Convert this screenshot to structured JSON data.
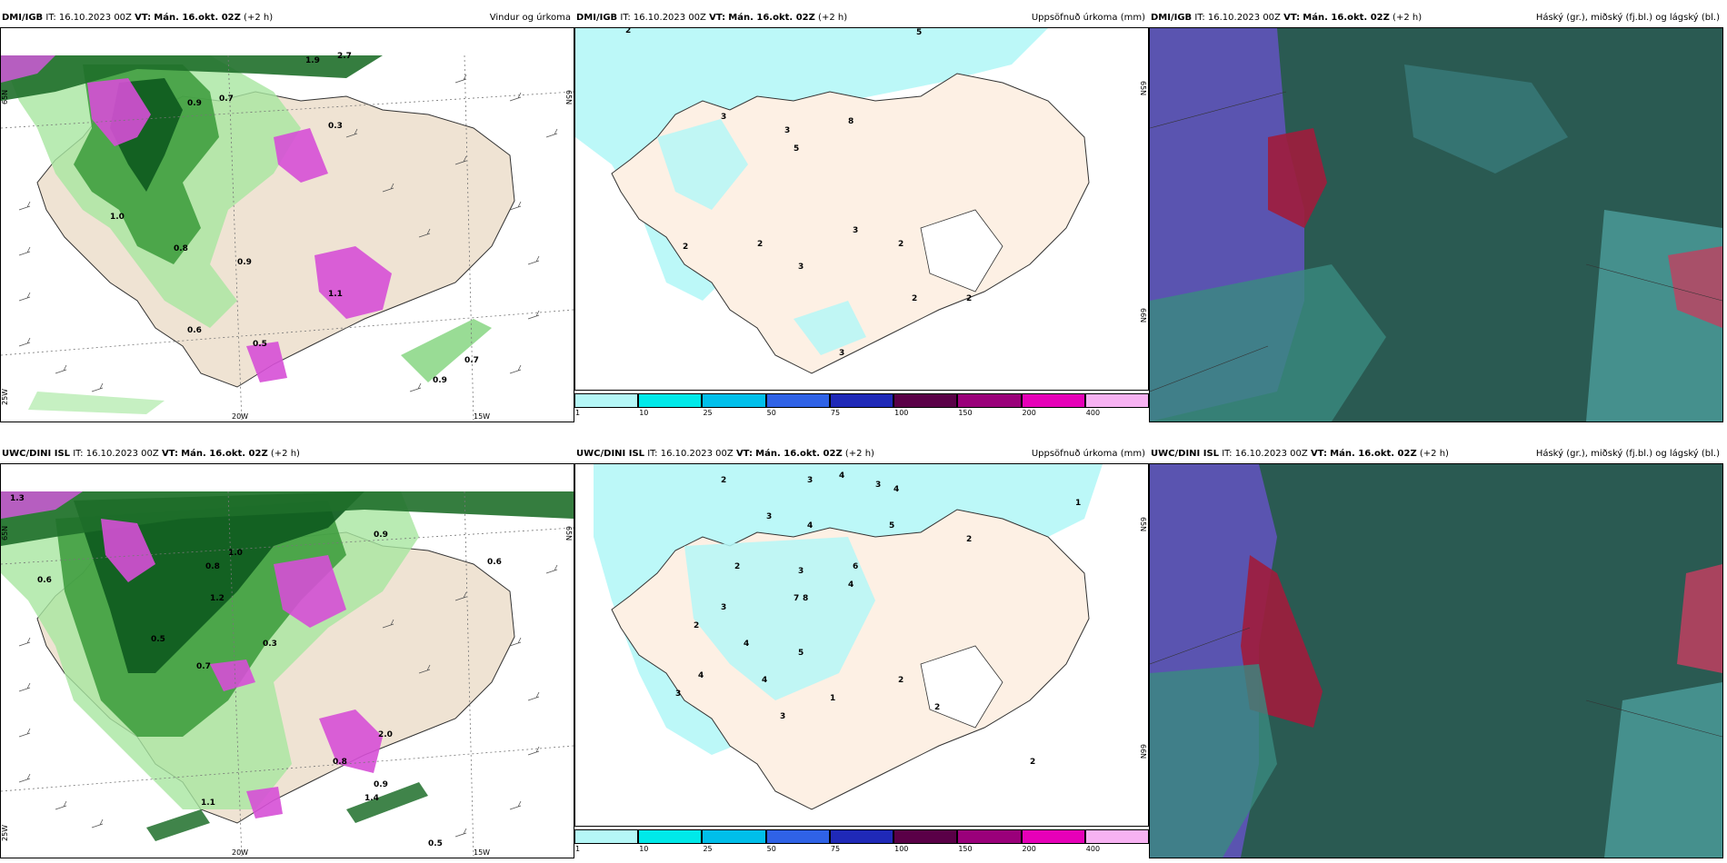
{
  "panels": {
    "p1": {
      "src": "DMI/IGB",
      "it": "IT: 16.10.2023 00Z",
      "vt_label": "VT:",
      "vt": "Mán. 16.okt. 02Z",
      "lead": "(+2 h)",
      "right": "Vindur og úrkoma"
    },
    "p2": {
      "src": "DMI/IGB",
      "it": "IT: 16.10.2023 00Z",
      "vt_label": "VT:",
      "vt": "Mán. 16.okt. 02Z",
      "lead": "(+2 h)",
      "right": "Uppsöfnuð úrkoma (mm)"
    },
    "p3": {
      "src": "DMI/IGB",
      "it": "IT: 16.10.2023 00Z",
      "vt_label": "VT:",
      "vt": "Mán. 16.okt. 02Z",
      "lead": "(+2 h)",
      "right": "Háský (gr.), miðský (fj.bl.) og lágský (bl.)"
    },
    "p4": {
      "src": "UWC/DINI ISL",
      "it": "IT: 16.10.2023 00Z",
      "vt_label": "VT:",
      "vt": "Mán. 16.okt. 02Z",
      "lead": "(+2 h)",
      "right": ""
    },
    "p5": {
      "src": "UWC/DINI ISL",
      "it": "IT: 16.10.2023 00Z",
      "vt_label": "VT:",
      "vt": "Mán. 16.okt. 02Z",
      "lead": "(+2 h)",
      "right": "Uppsöfnuð úrkoma (mm)"
    },
    "p6": {
      "src": "UWC/DINI ISL",
      "it": "IT: 16.10.2023 00Z",
      "vt_label": "VT:",
      "vt": "Mán. 16.okt. 02Z",
      "lead": "(+2 h)",
      "right": "Háský (gr.), miðský (fj.bl.) og lágský (bl.)"
    }
  },
  "axes": {
    "lat": "65N",
    "lat2": "66N",
    "lon1": "20W",
    "lon2": "15W",
    "lon0": "25W"
  },
  "colorbar": {
    "ticks": [
      "1",
      "10",
      "25",
      "50",
      "75",
      "100",
      "150",
      "200",
      "400"
    ],
    "colors": [
      "#b5f7f7",
      "#00e9e9",
      "#00bfea",
      "#2f62e6",
      "#1f29b8",
      "#5a0047",
      "#9a007a",
      "#e600b8",
      "#f7b2f2"
    ]
  },
  "wind_precip_values_top": [
    "0.9",
    "0.7",
    "1.0",
    "0.8",
    "0.9",
    "0.6",
    "0.5",
    "0.9",
    "0.7",
    "1.1",
    "1.9",
    "2.7",
    "0.3"
  ],
  "wind_precip_values_bottom": [
    "0.6",
    "0.8",
    "1.0",
    "0.9",
    "1.2",
    "0.7",
    "0.5",
    "0.3",
    "1.1",
    "1.4",
    "0.9",
    "0.5",
    "1.3",
    "0.6",
    "0.8",
    "2.0"
  ],
  "accum_values_top": [
    "2",
    "5",
    "3",
    "3",
    "8",
    "5",
    "2",
    "2",
    "3",
    "3",
    "2",
    "2",
    "2",
    "3"
  ],
  "accum_values_bottom": [
    "2",
    "3",
    "4",
    "3",
    "4",
    "5",
    "4",
    "3",
    "2",
    "3",
    "4",
    "6",
    "7",
    "3",
    "2",
    "4",
    "8",
    "4",
    "2",
    "3",
    "1",
    "2",
    "3",
    "4",
    "5",
    "2",
    "1",
    "2"
  ]
}
